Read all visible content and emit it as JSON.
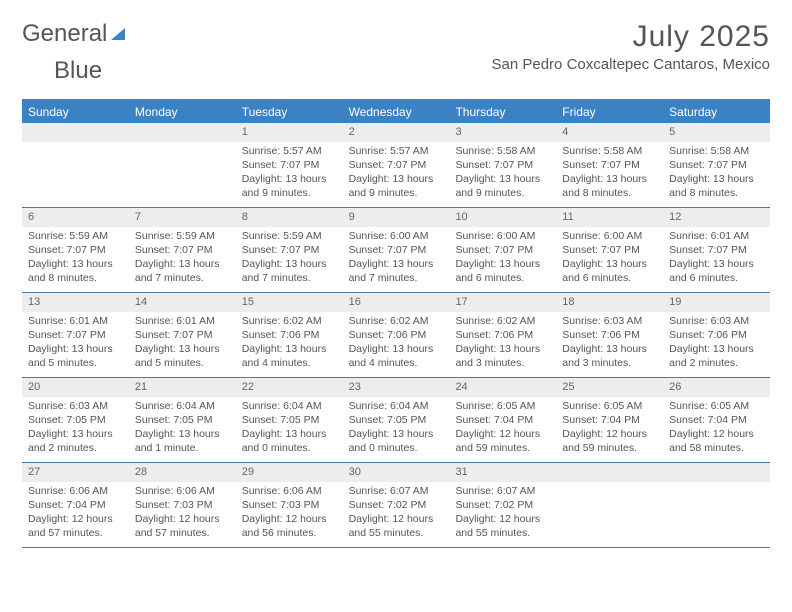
{
  "brand": {
    "part1": "General",
    "part2": "Blue"
  },
  "title": "July 2025",
  "location": "San Pedro Coxcaltepec Cantaros, Mexico",
  "colors": {
    "header_bar": "#3b82c4",
    "daynum_bg": "#ededed",
    "text": "#555555",
    "week_border": "#4a7aa8",
    "page_bg": "#ffffff"
  },
  "typography": {
    "body_pt": 10.5,
    "title_pt": 30,
    "weekday_pt": 12
  },
  "weekdays": [
    "Sunday",
    "Monday",
    "Tuesday",
    "Wednesday",
    "Thursday",
    "Friday",
    "Saturday"
  ],
  "weeks": [
    [
      null,
      null,
      {
        "n": "1",
        "sr": "Sunrise: 5:57 AM",
        "ss": "Sunset: 7:07 PM",
        "d1": "Daylight: 13 hours",
        "d2": "and 9 minutes."
      },
      {
        "n": "2",
        "sr": "Sunrise: 5:57 AM",
        "ss": "Sunset: 7:07 PM",
        "d1": "Daylight: 13 hours",
        "d2": "and 9 minutes."
      },
      {
        "n": "3",
        "sr": "Sunrise: 5:58 AM",
        "ss": "Sunset: 7:07 PM",
        "d1": "Daylight: 13 hours",
        "d2": "and 9 minutes."
      },
      {
        "n": "4",
        "sr": "Sunrise: 5:58 AM",
        "ss": "Sunset: 7:07 PM",
        "d1": "Daylight: 13 hours",
        "d2": "and 8 minutes."
      },
      {
        "n": "5",
        "sr": "Sunrise: 5:58 AM",
        "ss": "Sunset: 7:07 PM",
        "d1": "Daylight: 13 hours",
        "d2": "and 8 minutes."
      }
    ],
    [
      {
        "n": "6",
        "sr": "Sunrise: 5:59 AM",
        "ss": "Sunset: 7:07 PM",
        "d1": "Daylight: 13 hours",
        "d2": "and 8 minutes."
      },
      {
        "n": "7",
        "sr": "Sunrise: 5:59 AM",
        "ss": "Sunset: 7:07 PM",
        "d1": "Daylight: 13 hours",
        "d2": "and 7 minutes."
      },
      {
        "n": "8",
        "sr": "Sunrise: 5:59 AM",
        "ss": "Sunset: 7:07 PM",
        "d1": "Daylight: 13 hours",
        "d2": "and 7 minutes."
      },
      {
        "n": "9",
        "sr": "Sunrise: 6:00 AM",
        "ss": "Sunset: 7:07 PM",
        "d1": "Daylight: 13 hours",
        "d2": "and 7 minutes."
      },
      {
        "n": "10",
        "sr": "Sunrise: 6:00 AM",
        "ss": "Sunset: 7:07 PM",
        "d1": "Daylight: 13 hours",
        "d2": "and 6 minutes."
      },
      {
        "n": "11",
        "sr": "Sunrise: 6:00 AM",
        "ss": "Sunset: 7:07 PM",
        "d1": "Daylight: 13 hours",
        "d2": "and 6 minutes."
      },
      {
        "n": "12",
        "sr": "Sunrise: 6:01 AM",
        "ss": "Sunset: 7:07 PM",
        "d1": "Daylight: 13 hours",
        "d2": "and 6 minutes."
      }
    ],
    [
      {
        "n": "13",
        "sr": "Sunrise: 6:01 AM",
        "ss": "Sunset: 7:07 PM",
        "d1": "Daylight: 13 hours",
        "d2": "and 5 minutes."
      },
      {
        "n": "14",
        "sr": "Sunrise: 6:01 AM",
        "ss": "Sunset: 7:07 PM",
        "d1": "Daylight: 13 hours",
        "d2": "and 5 minutes."
      },
      {
        "n": "15",
        "sr": "Sunrise: 6:02 AM",
        "ss": "Sunset: 7:06 PM",
        "d1": "Daylight: 13 hours",
        "d2": "and 4 minutes."
      },
      {
        "n": "16",
        "sr": "Sunrise: 6:02 AM",
        "ss": "Sunset: 7:06 PM",
        "d1": "Daylight: 13 hours",
        "d2": "and 4 minutes."
      },
      {
        "n": "17",
        "sr": "Sunrise: 6:02 AM",
        "ss": "Sunset: 7:06 PM",
        "d1": "Daylight: 13 hours",
        "d2": "and 3 minutes."
      },
      {
        "n": "18",
        "sr": "Sunrise: 6:03 AM",
        "ss": "Sunset: 7:06 PM",
        "d1": "Daylight: 13 hours",
        "d2": "and 3 minutes."
      },
      {
        "n": "19",
        "sr": "Sunrise: 6:03 AM",
        "ss": "Sunset: 7:06 PM",
        "d1": "Daylight: 13 hours",
        "d2": "and 2 minutes."
      }
    ],
    [
      {
        "n": "20",
        "sr": "Sunrise: 6:03 AM",
        "ss": "Sunset: 7:05 PM",
        "d1": "Daylight: 13 hours",
        "d2": "and 2 minutes."
      },
      {
        "n": "21",
        "sr": "Sunrise: 6:04 AM",
        "ss": "Sunset: 7:05 PM",
        "d1": "Daylight: 13 hours",
        "d2": "and 1 minute."
      },
      {
        "n": "22",
        "sr": "Sunrise: 6:04 AM",
        "ss": "Sunset: 7:05 PM",
        "d1": "Daylight: 13 hours",
        "d2": "and 0 minutes."
      },
      {
        "n": "23",
        "sr": "Sunrise: 6:04 AM",
        "ss": "Sunset: 7:05 PM",
        "d1": "Daylight: 13 hours",
        "d2": "and 0 minutes."
      },
      {
        "n": "24",
        "sr": "Sunrise: 6:05 AM",
        "ss": "Sunset: 7:04 PM",
        "d1": "Daylight: 12 hours",
        "d2": "and 59 minutes."
      },
      {
        "n": "25",
        "sr": "Sunrise: 6:05 AM",
        "ss": "Sunset: 7:04 PM",
        "d1": "Daylight: 12 hours",
        "d2": "and 59 minutes."
      },
      {
        "n": "26",
        "sr": "Sunrise: 6:05 AM",
        "ss": "Sunset: 7:04 PM",
        "d1": "Daylight: 12 hours",
        "d2": "and 58 minutes."
      }
    ],
    [
      {
        "n": "27",
        "sr": "Sunrise: 6:06 AM",
        "ss": "Sunset: 7:04 PM",
        "d1": "Daylight: 12 hours",
        "d2": "and 57 minutes."
      },
      {
        "n": "28",
        "sr": "Sunrise: 6:06 AM",
        "ss": "Sunset: 7:03 PM",
        "d1": "Daylight: 12 hours",
        "d2": "and 57 minutes."
      },
      {
        "n": "29",
        "sr": "Sunrise: 6:06 AM",
        "ss": "Sunset: 7:03 PM",
        "d1": "Daylight: 12 hours",
        "d2": "and 56 minutes."
      },
      {
        "n": "30",
        "sr": "Sunrise: 6:07 AM",
        "ss": "Sunset: 7:02 PM",
        "d1": "Daylight: 12 hours",
        "d2": "and 55 minutes."
      },
      {
        "n": "31",
        "sr": "Sunrise: 6:07 AM",
        "ss": "Sunset: 7:02 PM",
        "d1": "Daylight: 12 hours",
        "d2": "and 55 minutes."
      },
      null,
      null
    ]
  ]
}
